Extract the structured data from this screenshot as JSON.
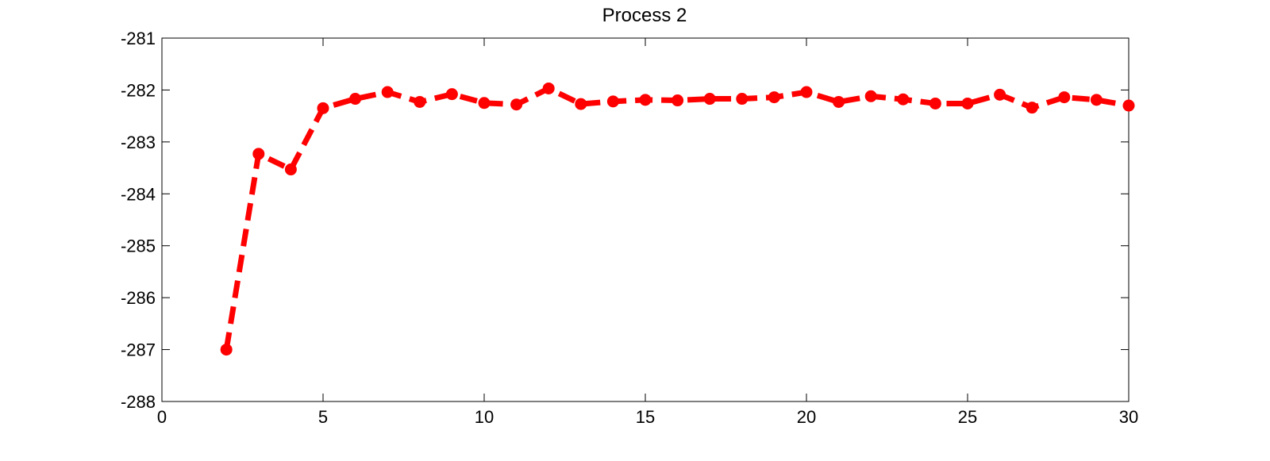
{
  "chart_data": {
    "type": "line",
    "title": "Process 2",
    "xlabel": "",
    "ylabel": "",
    "xlim": [
      0,
      30
    ],
    "ylim": [
      -288,
      -281
    ],
    "xticks": [
      "0",
      "5",
      "10",
      "15",
      "20",
      "25",
      "30"
    ],
    "yticks": [
      "-281",
      "-282",
      "-283",
      "-284",
      "-285",
      "-286",
      "-287",
      "-288"
    ],
    "grid": false,
    "line_style": "dashed",
    "marker": "circle",
    "color": "#ff0000",
    "series": [
      {
        "x": [
          2,
          3,
          4,
          5,
          6,
          7,
          8,
          9,
          10,
          11,
          12,
          13,
          14,
          15,
          16,
          17,
          18,
          19,
          20,
          21,
          22,
          23,
          24,
          25,
          26,
          27,
          28,
          29,
          30
        ],
        "values": [
          -287.0,
          -283.23,
          -283.53,
          -282.35,
          -282.17,
          -282.04,
          -282.23,
          -282.08,
          -282.25,
          -282.28,
          -281.97,
          -282.27,
          -282.22,
          -282.19,
          -282.2,
          -282.17,
          -282.17,
          -282.14,
          -282.04,
          -282.23,
          -282.12,
          -282.18,
          -282.26,
          -282.26,
          -282.09,
          -282.34,
          -282.14,
          -282.19,
          -282.3
        ]
      }
    ]
  }
}
